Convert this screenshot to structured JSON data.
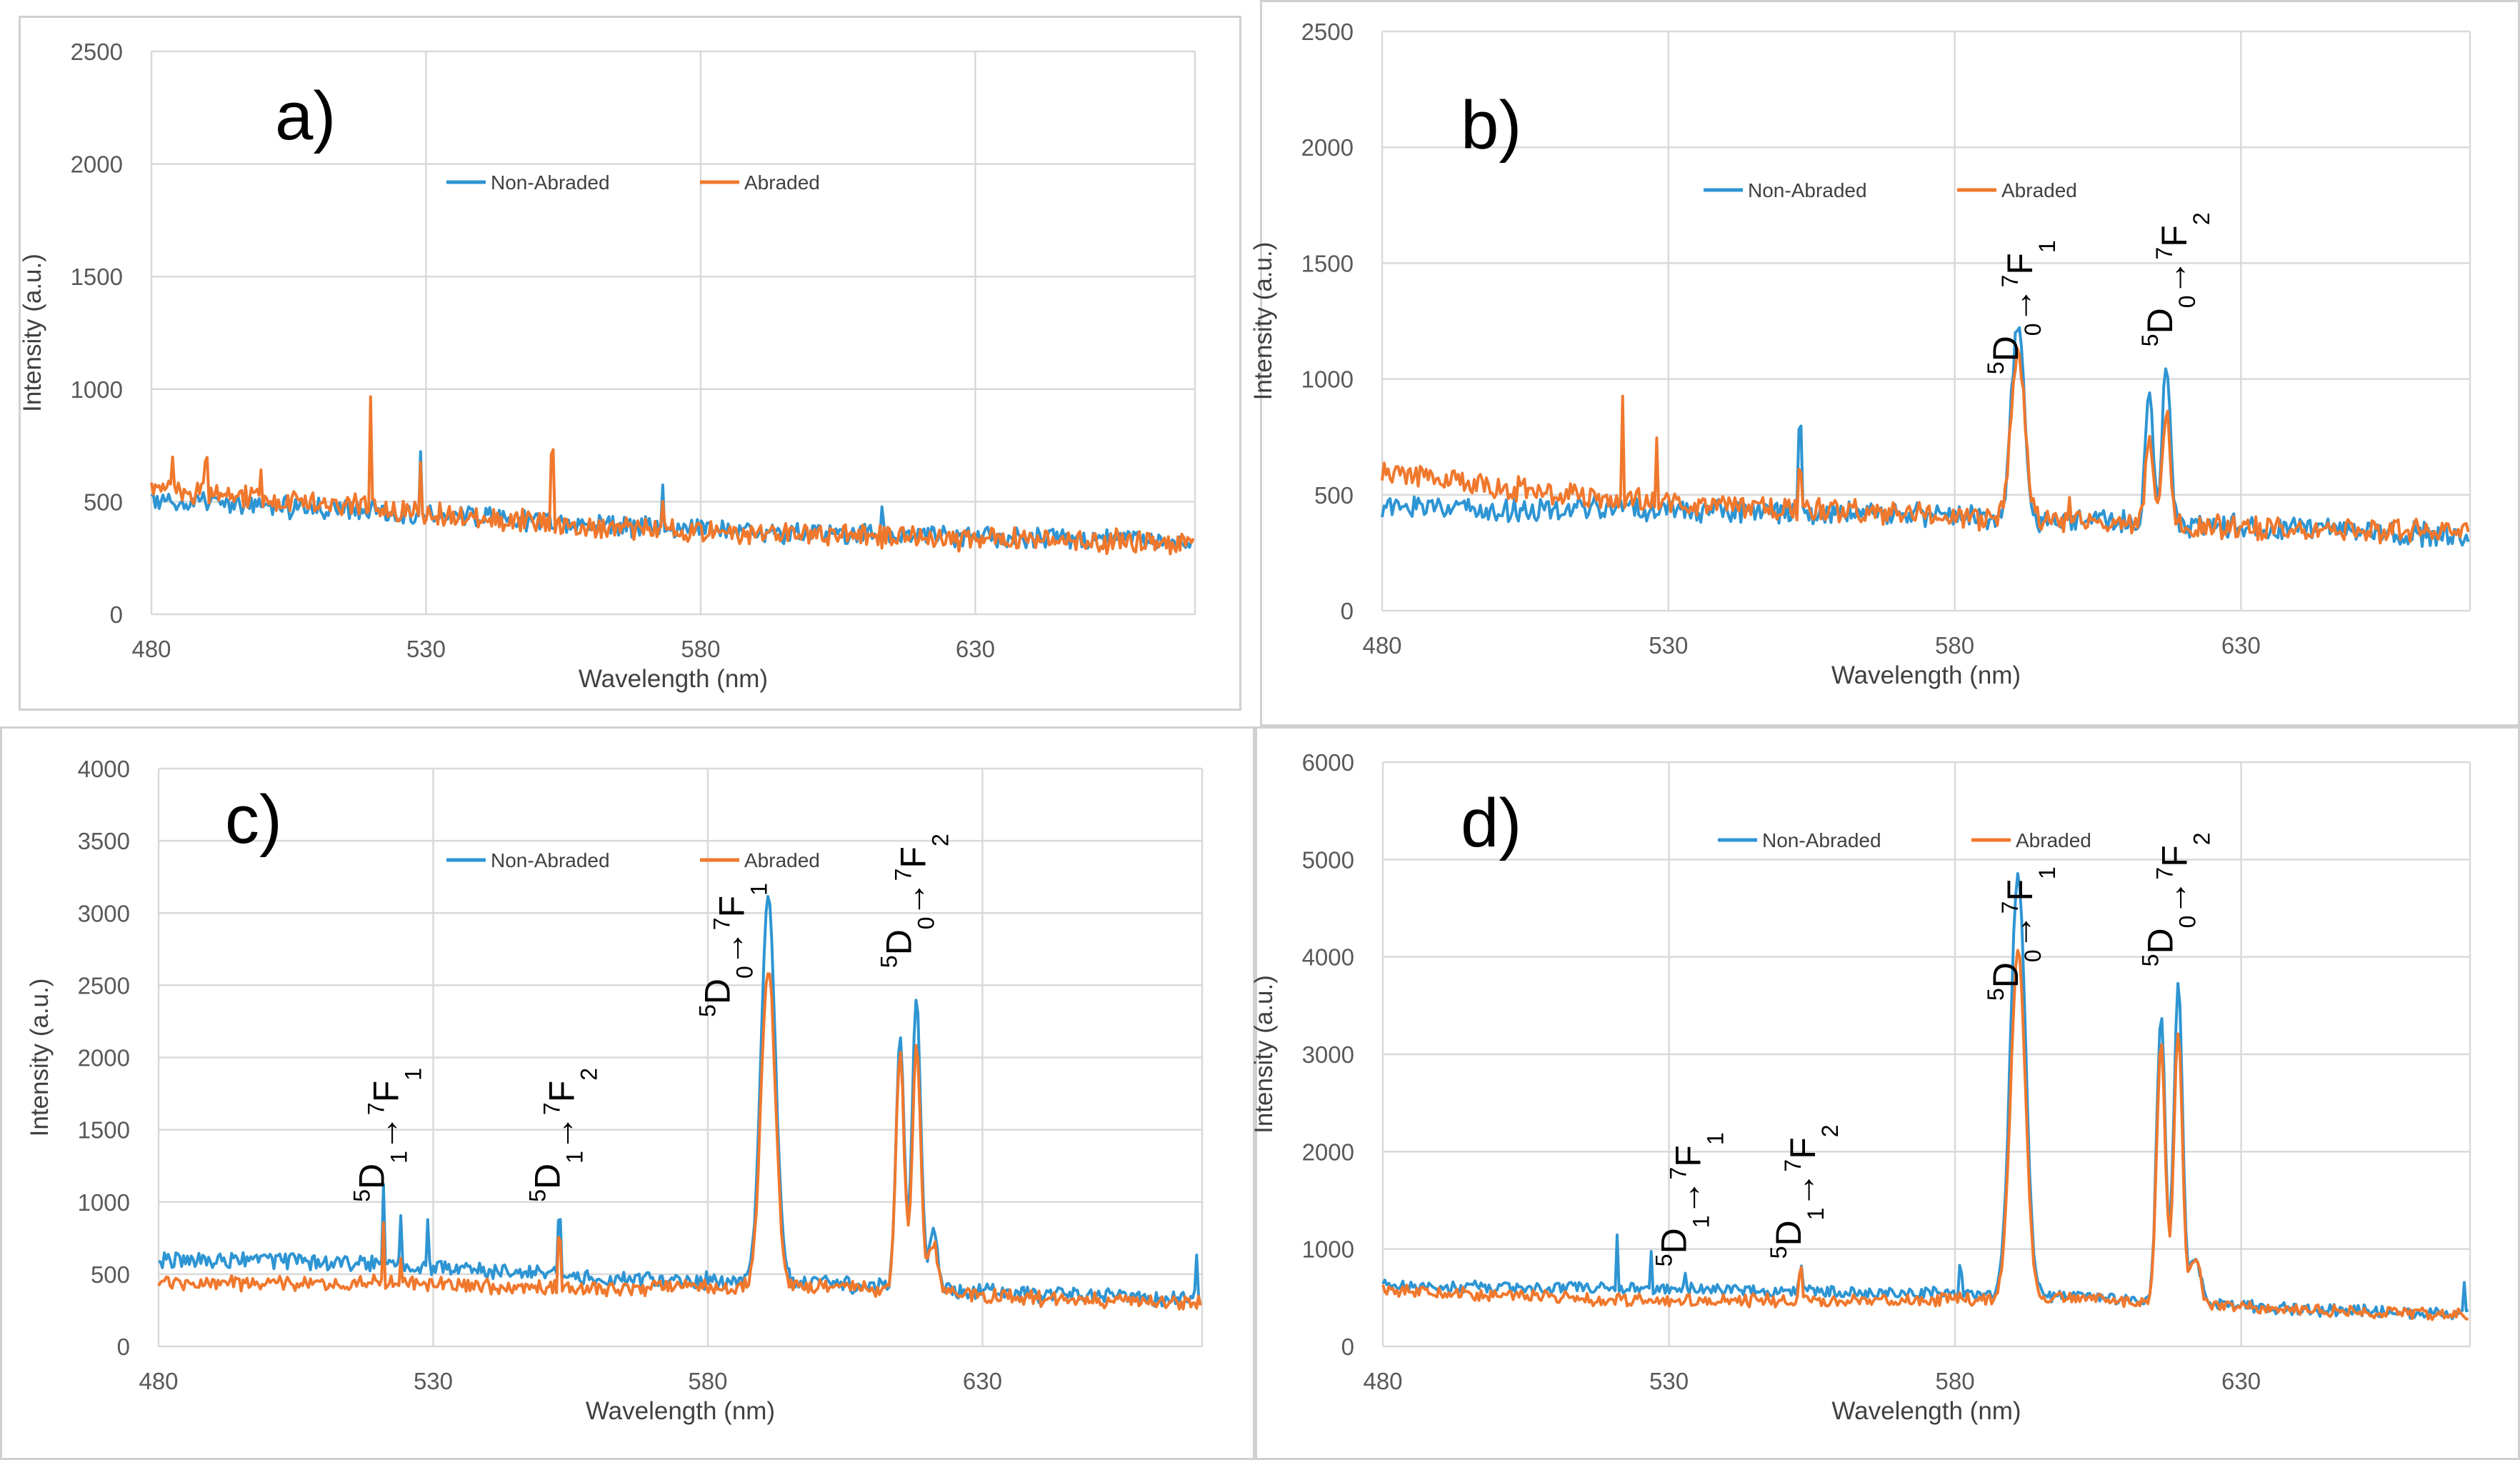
{
  "figure": {
    "background": "#ffffff"
  },
  "colors": {
    "non_abraded": "#2e95d3",
    "abraded": "#f0782d",
    "grid": "#d9d9d9"
  },
  "chart_data": [
    {
      "panel": "a)",
      "type": "line",
      "xlabel": "Wavelength (nm)",
      "ylabel": "Intensity (a.u.)",
      "xlim": [
        480,
        670
      ],
      "ylim": [
        0,
        2500
      ],
      "xticks": [
        "480",
        "530",
        "580",
        "630"
      ],
      "yticks": [
        "0",
        "500",
        "1000",
        "1500",
        "2000",
        "2500"
      ],
      "legend": [
        "Non-Abraded",
        "Abraded"
      ],
      "legend_position": "top-center",
      "series": [
        {
          "name": "Non-Abraded",
          "baseline": [
            [
              480,
              500
            ],
            [
              520,
              460
            ],
            [
              560,
              400
            ],
            [
              600,
              360
            ],
            [
              640,
              340
            ],
            [
              670,
              330
            ]
          ],
          "noise": 40,
          "spikes": [
            [
              529,
              300
            ],
            [
              573,
              220
            ],
            [
              613,
              90
            ]
          ],
          "peaks": []
        },
        {
          "name": "Abraded",
          "baseline": [
            [
              480,
              560
            ],
            [
              500,
              520
            ],
            [
              520,
              470
            ],
            [
              560,
              390
            ],
            [
              600,
              350
            ],
            [
              640,
              330
            ],
            [
              670,
              320
            ]
          ],
          "noise": 45,
          "spikes": [
            [
              484,
              150
            ],
            [
              490,
              140
            ],
            [
              500,
              110
            ],
            [
              520,
              480
            ],
            [
              529,
              180
            ],
            [
              553,
              350
            ],
            [
              573,
              120
            ]
          ],
          "peaks": []
        }
      ],
      "annotations": []
    },
    {
      "panel": "b)",
      "type": "line",
      "xlabel": "Wavelength (nm)",
      "ylabel": "Intensity (a.u.)",
      "xlim": [
        480,
        670
      ],
      "ylim": [
        0,
        2500
      ],
      "xticks": [
        "480",
        "530",
        "580",
        "630"
      ],
      "yticks": [
        "0",
        "500",
        "1000",
        "1500",
        "2000",
        "2500"
      ],
      "legend": [
        "Non-Abraded",
        "Abraded"
      ],
      "legend_position": "top-center",
      "series": [
        {
          "name": "Non-Abraded",
          "baseline": [
            [
              480,
              440
            ],
            [
              520,
              440
            ],
            [
              560,
              420
            ],
            [
              600,
              390
            ],
            [
              640,
              350
            ],
            [
              670,
              320
            ]
          ],
          "noise": 45,
          "spikes": [
            [
              553,
              350
            ],
            [
              583,
              80
            ]
          ],
          "peaks": [
            [
              591,
              850,
              1.1
            ],
            [
              614,
              550,
              0.7
            ],
            [
              617,
              700,
              0.7
            ]
          ]
        },
        {
          "name": "Abraded",
          "baseline": [
            [
              480,
              600
            ],
            [
              500,
              540
            ],
            [
              520,
              480
            ],
            [
              560,
              430
            ],
            [
              600,
              380
            ],
            [
              640,
              350
            ],
            [
              670,
              340
            ]
          ],
          "noise": 45,
          "spikes": [
            [
              522,
              480
            ],
            [
              528,
              300
            ],
            [
              553,
              150
            ],
            [
              600,
              120
            ]
          ],
          "peaks": [
            [
              591,
              740,
              1.2
            ],
            [
              614,
              350,
              0.7
            ],
            [
              617,
              480,
              0.7
            ]
          ]
        }
      ],
      "annotations": [
        {
          "x": 591,
          "y": 1020,
          "from": "5D0",
          "to": "7F1",
          "f_main": "D",
          "f_sup": "5",
          "f_sub": "0",
          "t_main": "F",
          "t_sup": "7",
          "t_sub": "1"
        },
        {
          "x": 618,
          "y": 1140,
          "from": "5D0",
          "to": "7F2",
          "f_main": "D",
          "f_sup": "5",
          "f_sub": "0",
          "t_main": "F",
          "t_sup": "7",
          "t_sub": "2"
        }
      ]
    },
    {
      "panel": "c)",
      "type": "line",
      "xlabel": "Wavelength (nm)",
      "ylabel": "Intensity (a.u.)",
      "xlim": [
        480,
        670
      ],
      "ylim": [
        0,
        4000
      ],
      "xticks": [
        "480",
        "530",
        "580",
        "630"
      ],
      "yticks": [
        "0",
        "500",
        "1000",
        "1500",
        "2000",
        "2500",
        "3000",
        "3500",
        "4000"
      ],
      "legend": [
        "Non-Abraded",
        "Abraded"
      ],
      "legend_position": "top-center",
      "series": [
        {
          "name": "Non-Abraded",
          "baseline": [
            [
              480,
              600
            ],
            [
              520,
              580
            ],
            [
              560,
              470
            ],
            [
              600,
              440
            ],
            [
              640,
              360
            ],
            [
              670,
              330
            ]
          ],
          "noise": 50,
          "spikes": [
            [
              521,
              500
            ],
            [
              524,
              300
            ],
            [
              529,
              350
            ],
            [
              553,
              400
            ],
            [
              669,
              300
            ]
          ],
          "peaks": [
            [
              591,
              2650,
              1.3
            ],
            [
              615,
              1700,
              0.75
            ],
            [
              618,
              2050,
              0.75
            ],
            [
              621,
              400,
              0.8
            ]
          ]
        },
        {
          "name": "Abraded",
          "baseline": [
            [
              480,
              430
            ],
            [
              520,
              440
            ],
            [
              560,
              400
            ],
            [
              600,
              420
            ],
            [
              640,
              330
            ],
            [
              670,
              300
            ]
          ],
          "noise": 45,
          "spikes": [
            [
              521,
              400
            ],
            [
              524,
              200
            ],
            [
              553,
              350
            ]
          ],
          "peaks": [
            [
              591,
              2200,
              1.3
            ],
            [
              615,
              1650,
              0.75
            ],
            [
              618,
              1700,
              0.75
            ],
            [
              621,
              350,
              0.8
            ]
          ]
        }
      ],
      "annotations": [
        {
          "x": 521,
          "y": 1000,
          "from": "5D1",
          "to": "7F1",
          "f_main": "D",
          "f_sup": "5",
          "f_sub": "1",
          "t_main": "F",
          "t_sup": "7",
          "t_sub": "1"
        },
        {
          "x": 553,
          "y": 1000,
          "from": "5D1",
          "to": "7F2",
          "f_main": "D",
          "f_sup": "5",
          "f_sub": "1",
          "t_main": "F",
          "t_sup": "7",
          "t_sub": "2"
        },
        {
          "x": 584,
          "y": 2280,
          "from": "5D0",
          "to": "7F1",
          "f_main": "D",
          "f_sup": "5",
          "f_sub": "0",
          "t_main": "F",
          "t_sup": "7",
          "t_sub": "1"
        },
        {
          "x": 617,
          "y": 2620,
          "from": "5D0",
          "to": "7F2",
          "f_main": "D",
          "f_sup": "5",
          "f_sub": "0",
          "t_main": "F",
          "t_sup": "7",
          "t_sub": "2"
        }
      ]
    },
    {
      "panel": "d)",
      "type": "line",
      "xlabel": "Wavelength (nm)",
      "ylabel": "Intensity (a.u.)",
      "xlim": [
        480,
        670
      ],
      "ylim": [
        0,
        6000
      ],
      "xticks": [
        "480",
        "530",
        "580",
        "630"
      ],
      "yticks": [
        "0",
        "1000",
        "2000",
        "3000",
        "4000",
        "5000",
        "6000"
      ],
      "legend": [
        "Non-Abraded",
        "Abraded"
      ],
      "legend_position": "top-center",
      "series": [
        {
          "name": "Non-Abraded",
          "baseline": [
            [
              480,
              620
            ],
            [
              520,
              600
            ],
            [
              560,
              560
            ],
            [
              600,
              520
            ],
            [
              640,
              380
            ],
            [
              670,
              330
            ]
          ],
          "noise": 55,
          "spikes": [
            [
              521,
              500
            ],
            [
              527,
              350
            ],
            [
              533,
              150
            ],
            [
              553,
              200
            ],
            [
              581,
              250
            ],
            [
              669,
              300
            ]
          ],
          "peaks": [
            [
              591,
              4350,
              1.3
            ],
            [
              616,
              2950,
              0.75
            ],
            [
              619,
              3250,
              0.75
            ],
            [
              622,
              500,
              0.9
            ]
          ]
        },
        {
          "name": "Abraded",
          "baseline": [
            [
              480,
              580
            ],
            [
              520,
              480
            ],
            [
              560,
              470
            ],
            [
              600,
              500
            ],
            [
              640,
              380
            ],
            [
              670,
              320
            ]
          ],
          "noise": 55,
          "spikes": [
            [
              553,
              300
            ]
          ],
          "peaks": [
            [
              591,
              3550,
              1.3
            ],
            [
              616,
              2650,
              0.75
            ],
            [
              619,
              2750,
              0.75
            ],
            [
              622,
              450,
              0.9
            ]
          ]
        }
      ],
      "annotations": [
        {
          "x": 533,
          "y": 820,
          "from": "5D1",
          "to": "7F1",
          "f_main": "D",
          "f_sup": "5",
          "f_sub": "1",
          "t_main": "F",
          "t_sup": "7",
          "t_sub": "1"
        },
        {
          "x": 553,
          "y": 900,
          "from": "5D1",
          "to": "7F2",
          "f_main": "D",
          "f_sup": "5",
          "f_sub": "1",
          "t_main": "F",
          "t_sup": "7",
          "t_sub": "2"
        },
        {
          "x": 591,
          "y": 3550,
          "from": "5D0",
          "to": "7F1",
          "f_main": "D",
          "f_sup": "5",
          "f_sub": "0",
          "t_main": "F",
          "t_sup": "7",
          "t_sub": "1"
        },
        {
          "x": 618,
          "y": 3900,
          "from": "5D0",
          "to": "7F2",
          "f_main": "D",
          "f_sup": "5",
          "f_sub": "0",
          "t_main": "F",
          "t_sup": "7",
          "t_sub": "2"
        }
      ]
    }
  ]
}
